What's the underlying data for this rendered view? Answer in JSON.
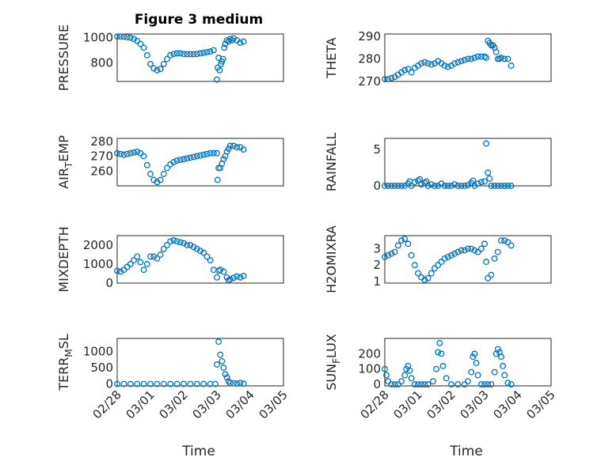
{
  "figure": {
    "title": "Figure 3 medium"
  },
  "chart_data": [
    {
      "type": "scatter",
      "ylabel": "PRESSURE",
      "xlabel": "",
      "title": "Figure 3 medium",
      "xlim": [
        0,
        5
      ],
      "ylim": [
        650,
        1030
      ],
      "yticks": [
        800,
        1000
      ],
      "xticklabels": [
        "02/28",
        "03/01",
        "03/02",
        "03/03",
        "03/04",
        "03/05"
      ],
      "show_xticklabels": false,
      "grid": true,
      "x": [
        0,
        0.1,
        0.2,
        0.3,
        0.4,
        0.5,
        0.6,
        0.7,
        0.8,
        0.9,
        1,
        1.1,
        1.2,
        1.3,
        1.4,
        1.5,
        1.6,
        1.7,
        1.8,
        1.9,
        2,
        2.1,
        2.2,
        2.3,
        2.4,
        2.5,
        2.6,
        2.7,
        2.8,
        2.9,
        3,
        3.02,
        3.05,
        3.08,
        3.12,
        3.15,
        3.18,
        3.22,
        3.25,
        3.3,
        3.35,
        3.4,
        3.45,
        3.5,
        3.6,
        3.7,
        3.8
      ],
      "y": [
        1010,
        1010,
        1008,
        1005,
        1000,
        990,
        975,
        950,
        920,
        860,
        790,
        755,
        740,
        750,
        790,
        830,
        860,
        870,
        875,
        875,
        870,
        868,
        868,
        868,
        870,
        875,
        880,
        885,
        890,
        900,
        665,
        760,
        840,
        740,
        790,
        810,
        830,
        920,
        950,
        980,
        970,
        990,
        980,
        995,
        980,
        960,
        970
      ]
    },
    {
      "type": "scatter",
      "ylabel": "THETA",
      "xlabel": "",
      "xlim": [
        0,
        5
      ],
      "ylim": [
        270,
        291
      ],
      "yticks": [
        270,
        280,
        290
      ],
      "xticklabels": [
        "02/28",
        "03/01",
        "03/02",
        "03/03",
        "03/04",
        "03/05"
      ],
      "show_xticklabels": false,
      "grid": true,
      "x": [
        0,
        0.1,
        0.2,
        0.3,
        0.4,
        0.5,
        0.6,
        0.7,
        0.8,
        0.9,
        1,
        1.1,
        1.2,
        1.3,
        1.4,
        1.5,
        1.6,
        1.7,
        1.8,
        1.9,
        2,
        2.1,
        2.2,
        2.3,
        2.4,
        2.5,
        2.6,
        2.7,
        2.8,
        2.9,
        3,
        3.05,
        3.1,
        3.15,
        3.2,
        3.25,
        3.3,
        3.35,
        3.4,
        3.45,
        3.5,
        3.6,
        3.7,
        3.8
      ],
      "y": [
        271,
        271,
        271.5,
        272,
        273,
        274,
        275,
        275.5,
        274,
        276,
        277,
        278,
        278.5,
        278,
        277.5,
        278,
        279,
        278,
        277,
        276.5,
        277,
        278,
        278.5,
        279,
        279.5,
        280,
        280,
        280.5,
        281,
        281,
        281,
        280.5,
        288,
        287,
        286,
        286,
        285,
        283,
        280,
        280,
        280.5,
        280,
        280,
        277
      ]
    },
    {
      "type": "scatter",
      "ylabel": "AIR_TEMP",
      "xlabel": "",
      "xlim": [
        0,
        5
      ],
      "ylim": [
        250,
        282
      ],
      "yticks": [
        260,
        270,
        280
      ],
      "xticklabels": [
        "02/28",
        "03/01",
        "03/02",
        "03/03",
        "03/04",
        "03/05"
      ],
      "show_xticklabels": false,
      "grid": true,
      "x": [
        0,
        0.1,
        0.2,
        0.3,
        0.4,
        0.5,
        0.6,
        0.7,
        0.8,
        0.9,
        1,
        1.1,
        1.2,
        1.3,
        1.4,
        1.5,
        1.6,
        1.7,
        1.8,
        1.9,
        2,
        2.1,
        2.2,
        2.3,
        2.4,
        2.5,
        2.6,
        2.7,
        2.8,
        2.9,
        3,
        3.02,
        3.05,
        3.1,
        3.15,
        3.2,
        3.25,
        3.3,
        3.35,
        3.4,
        3.5,
        3.6,
        3.7,
        3.8
      ],
      "y": [
        272,
        271.5,
        271,
        271.5,
        272,
        272.5,
        273,
        272,
        270,
        264,
        258,
        254,
        252.5,
        254,
        258,
        262,
        264.5,
        266,
        267,
        267.5,
        268,
        268.5,
        269,
        269.5,
        270,
        270.5,
        271,
        271.5,
        272,
        272,
        272,
        254,
        262,
        262,
        265,
        268,
        270,
        273,
        275,
        277,
        277,
        276,
        276,
        274.5
      ]
    },
    {
      "type": "scatter",
      "ylabel": "RAINFALL",
      "xlabel": "",
      "xlim": [
        0,
        5
      ],
      "ylim": [
        0,
        6.5
      ],
      "yticks": [
        0,
        5
      ],
      "xticklabels": [
        "02/28",
        "03/01",
        "03/02",
        "03/03",
        "03/04",
        "03/05"
      ],
      "show_xticklabels": false,
      "grid": true,
      "x": [
        0,
        0.1,
        0.2,
        0.3,
        0.4,
        0.5,
        0.6,
        0.7,
        0.75,
        0.8,
        0.9,
        1,
        1.05,
        1.1,
        1.2,
        1.25,
        1.3,
        1.4,
        1.5,
        1.6,
        1.7,
        1.8,
        1.9,
        2,
        2.1,
        2.2,
        2.3,
        2.4,
        2.5,
        2.6,
        2.65,
        2.7,
        2.8,
        2.9,
        3,
        3.05,
        3.1,
        3.15,
        3.2,
        3.3,
        3.4,
        3.5,
        3.6,
        3.7,
        3.8
      ],
      "y": [
        0,
        0,
        0,
        0,
        0,
        0,
        0,
        0.3,
        0.6,
        0,
        0.5,
        0.7,
        0.9,
        0.2,
        0.4,
        0.6,
        0,
        0.2,
        0,
        0,
        0.3,
        0,
        0,
        0,
        0.2,
        0,
        0,
        0,
        0.1,
        0.4,
        0.7,
        0,
        0.3,
        0.5,
        0.6,
        5.8,
        1.8,
        1,
        0,
        0,
        0,
        0,
        0,
        0,
        0
      ]
    },
    {
      "type": "scatter",
      "ylabel": "MIXDEPTH",
      "xlabel": "",
      "xlim": [
        0,
        5
      ],
      "ylim": [
        0,
        2500
      ],
      "yticks": [
        0,
        1000,
        2000
      ],
      "xticklabels": [
        "02/28",
        "03/01",
        "03/02",
        "03/03",
        "03/04",
        "03/05"
      ],
      "show_xticklabels": false,
      "grid": true,
      "x": [
        0,
        0.1,
        0.2,
        0.3,
        0.4,
        0.5,
        0.6,
        0.7,
        0.8,
        0.9,
        1,
        1.1,
        1.2,
        1.3,
        1.4,
        1.5,
        1.6,
        1.7,
        1.8,
        1.9,
        2,
        2.1,
        2.2,
        2.3,
        2.4,
        2.5,
        2.6,
        2.7,
        2.8,
        2.9,
        3,
        3.05,
        3.1,
        3.2,
        3.3,
        3.35,
        3.4,
        3.5,
        3.6,
        3.7,
        3.8
      ],
      "y": [
        650,
        600,
        700,
        850,
        1000,
        1200,
        1400,
        1100,
        700,
        1000,
        1400,
        1400,
        1300,
        1500,
        1800,
        2000,
        2200,
        2250,
        2200,
        2150,
        2100,
        2000,
        2000,
        1900,
        1800,
        1700,
        1600,
        1400,
        1200,
        700,
        300,
        650,
        700,
        600,
        300,
        150,
        200,
        280,
        350,
        300,
        380
      ]
    },
    {
      "type": "scatter",
      "ylabel": "H2OMIXRA",
      "xlabel": "",
      "xlim": [
        0,
        5
      ],
      "ylim": [
        0.9,
        3.8
      ],
      "yticks": [
        1,
        2,
        3
      ],
      "xticklabels": [
        "02/28",
        "03/01",
        "03/02",
        "03/03",
        "03/04",
        "03/05"
      ],
      "show_xticklabels": false,
      "grid": true,
      "x": [
        0,
        0.1,
        0.2,
        0.3,
        0.4,
        0.5,
        0.6,
        0.7,
        0.8,
        0.9,
        1,
        1.1,
        1.2,
        1.3,
        1.4,
        1.5,
        1.6,
        1.7,
        1.8,
        1.9,
        2,
        2.1,
        2.2,
        2.3,
        2.4,
        2.5,
        2.6,
        2.7,
        2.8,
        2.9,
        3,
        3.05,
        3.1,
        3.2,
        3.3,
        3.4,
        3.5,
        3.6,
        3.7,
        3.8
      ],
      "y": [
        2.5,
        2.6,
        2.7,
        2.8,
        3.2,
        3.5,
        3.6,
        3.3,
        2.6,
        2,
        1.5,
        1.25,
        1.1,
        1.2,
        1.5,
        1.8,
        2,
        2.2,
        2.4,
        2.5,
        2.6,
        2.7,
        2.8,
        2.9,
        2.9,
        3,
        3,
        2.9,
        2.8,
        3,
        3.3,
        2.2,
        1.2,
        1.4,
        2.4,
        2.8,
        3.5,
        3.5,
        3.4,
        3.2
      ]
    },
    {
      "type": "scatter",
      "ylabel": "TERR_MSL",
      "xlabel": "Time",
      "xlim": [
        0,
        5
      ],
      "ylim": [
        -60,
        1400
      ],
      "yticks": [
        0,
        500,
        1000
      ],
      "xticklabels": [
        "02/28",
        "03/01",
        "03/02",
        "03/03",
        "03/04",
        "03/05"
      ],
      "show_xticklabels": true,
      "grid": true,
      "x": [
        0,
        0.2,
        0.4,
        0.6,
        0.8,
        1,
        1.2,
        1.4,
        1.6,
        1.8,
        2,
        2.2,
        2.4,
        2.6,
        2.8,
        2.95,
        3.0,
        3.05,
        3.1,
        3.15,
        3.2,
        3.25,
        3.3,
        3.35,
        3.4,
        3.5,
        3.6,
        3.7,
        3.8
      ],
      "y": [
        0,
        0,
        0,
        0,
        0,
        0,
        0,
        0,
        0,
        0,
        0,
        0,
        0,
        0,
        0,
        0,
        600,
        1300,
        900,
        700,
        500,
        300,
        200,
        80,
        30,
        20,
        10,
        30,
        10
      ]
    },
    {
      "type": "scatter",
      "ylabel": "SUN_FLUX",
      "xlabel": "Time",
      "xlim": [
        0,
        5
      ],
      "ylim": [
        -10,
        300
      ],
      "yticks": [
        0,
        100,
        200
      ],
      "xticklabels": [
        "02/28",
        "03/01",
        "03/02",
        "03/03",
        "03/04",
        "03/05"
      ],
      "show_xticklabels": true,
      "grid": true,
      "x": [
        0,
        0.05,
        0.1,
        0.2,
        0.3,
        0.4,
        0.5,
        0.6,
        0.65,
        0.7,
        0.75,
        0.8,
        0.9,
        1,
        1.1,
        1.2,
        1.3,
        1.45,
        1.55,
        1.6,
        1.65,
        1.7,
        1.75,
        1.85,
        2,
        2.2,
        2.4,
        2.5,
        2.6,
        2.65,
        2.7,
        2.75,
        2.8,
        2.9,
        3,
        3.1,
        3.2,
        3.3,
        3.35,
        3.4,
        3.45,
        3.5,
        3.55,
        3.6,
        3.7,
        3.8
      ],
      "y": [
        100,
        60,
        20,
        0,
        0,
        0,
        20,
        60,
        100,
        120,
        90,
        40,
        0,
        0,
        0,
        0,
        0,
        20,
        100,
        210,
        270,
        200,
        120,
        40,
        0,
        0,
        0,
        20,
        80,
        180,
        200,
        140,
        60,
        0,
        0,
        0,
        0,
        80,
        200,
        230,
        210,
        180,
        120,
        60,
        10,
        0
      ]
    }
  ]
}
